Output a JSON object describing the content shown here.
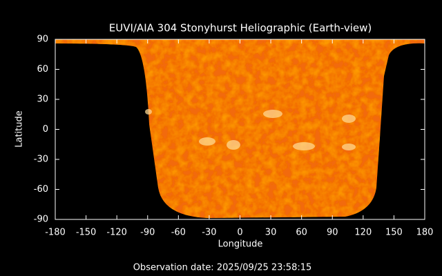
{
  "chart_data": {
    "type": "map",
    "title": "EUVI/AIA 304 Stonyhurst Heliographic (Earth-view)",
    "x_label": "Longitude",
    "y_label": "Latitude",
    "xlim": [
      -180,
      180
    ],
    "ylim": [
      -90,
      90
    ],
    "xticks": [
      -180,
      -150,
      -120,
      -90,
      -60,
      -30,
      0,
      30,
      60,
      90,
      120,
      150,
      180
    ],
    "yticks": [
      -90,
      -60,
      -30,
      0,
      30,
      60,
      90
    ],
    "footer": "Observation date: 2025/09/25 23:58:15"
  }
}
